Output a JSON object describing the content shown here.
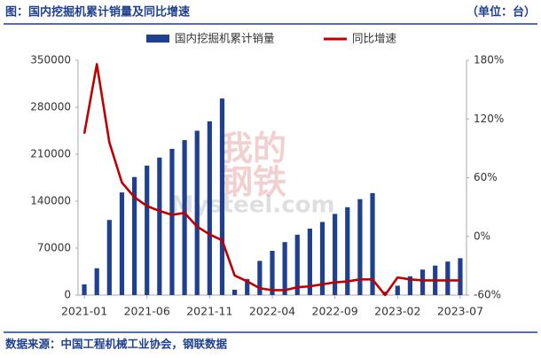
{
  "chart_data": {
    "type": "bar_line",
    "title": "图：国内挖掘机累计销量及同比增速",
    "unit": "（单位：台）",
    "source": "数据来源：中国工程机械工业协会，钢联数据",
    "watermark": [
      "我的",
      "钢铁",
      "Mysteel.com"
    ],
    "categories": [
      "2021-01",
      null,
      null,
      null,
      null,
      "2021-06",
      null,
      null,
      null,
      null,
      "2021-11",
      null,
      null,
      null,
      null,
      "2022-04",
      null,
      null,
      null,
      null,
      "2022-09",
      null,
      null,
      null,
      null,
      "2023-02",
      null,
      null,
      null,
      null,
      "2023-07"
    ],
    "series": [
      {
        "name": "国内挖掘机累计销量",
        "color": "#1f3f8f",
        "type": "bar",
        "values": [
          16000,
          40000,
          112000,
          153000,
          176000,
          193000,
          205000,
          218000,
          231000,
          245000,
          259000,
          293000,
          8000,
          24000,
          51000,
          66000,
          79000,
          90000,
          99000,
          109000,
          121000,
          131000,
          143000,
          152000,
          5000,
          14000,
          28000,
          38000,
          44000,
          50000,
          55000
        ]
      },
      {
        "name": "同比增速",
        "color": "#c00000",
        "type": "line",
        "axis": "y2",
        "values": [
          105,
          176,
          96,
          55,
          40,
          31,
          26,
          22,
          24,
          10,
          2,
          -4,
          -40,
          -46,
          -53,
          -55,
          -55,
          -52,
          -51,
          -49,
          -47,
          -46,
          -44,
          -44,
          -60,
          -42,
          -44,
          -45,
          -45,
          -45,
          -45
        ]
      }
    ],
    "ylim": [
      0,
      350000
    ],
    "yticks": [
      0,
      70000,
      140000,
      210000,
      280000,
      350000
    ],
    "y2lim": [
      -60,
      180
    ],
    "y2ticks": [
      {
        "value": -60,
        "label": "-60%"
      },
      {
        "value": 0,
        "label": "0%"
      },
      {
        "value": 60,
        "label": "60%"
      },
      {
        "value": 120,
        "label": "120%"
      },
      {
        "value": 180,
        "label": "180%"
      }
    ]
  }
}
